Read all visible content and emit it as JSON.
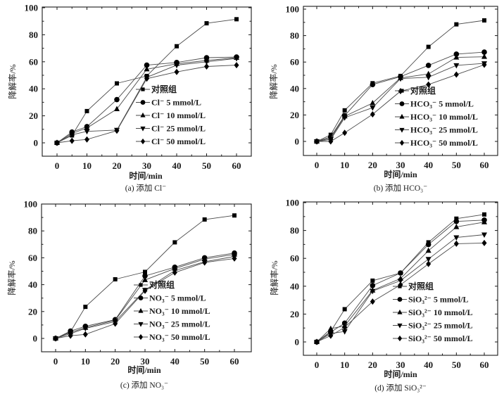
{
  "figure": {
    "shared": {
      "xlabel": "时间/min",
      "ylabel": "降解率/%",
      "x_ticks": [
        0,
        10,
        20,
        30,
        40,
        50,
        60
      ],
      "y_ticks": [
        0,
        20,
        40,
        60,
        80,
        100
      ],
      "x_range": [
        -5,
        65
      ],
      "y_range": [
        -10,
        100
      ],
      "markers": [
        "square",
        "circle",
        "triangle-up",
        "triangle-down",
        "diamond"
      ]
    }
  },
  "chart_data": [
    {
      "id": "a",
      "type": "line",
      "title": "",
      "caption": "(a) 添加 Cl⁻",
      "xlabel": "时间/min",
      "ylabel": "降解率/%",
      "xlim": [
        -5,
        65
      ],
      "ylim": [
        -10,
        100
      ],
      "x": [
        0,
        5,
        10,
        20,
        30,
        40,
        50,
        60
      ],
      "legend_position": "lower-right",
      "series": [
        {
          "name": "对照组",
          "marker": "square",
          "values": [
            0,
            5.5,
            23.5,
            44,
            49.5,
            71.5,
            88.5,
            91.5
          ]
        },
        {
          "name": "Cl⁻ 5 mmol/L",
          "marker": "circle",
          "values": [
            0,
            8,
            12,
            32,
            57.5,
            59.5,
            63,
            63.5
          ]
        },
        {
          "name": "Cl⁻ 10 mmol/L",
          "marker": "triangle-up",
          "values": [
            0,
            7,
            11,
            25,
            54.5,
            58.5,
            61,
            63
          ]
        },
        {
          "name": "Cl⁻ 25 mmol/L",
          "marker": "triangle-down",
          "values": [
            0,
            6,
            8.5,
            9.5,
            48.5,
            57.5,
            60,
            62.5
          ]
        },
        {
          "name": "Cl⁻ 50 mmol/L",
          "marker": "diamond",
          "values": [
            0,
            1.5,
            2.5,
            9,
            47.5,
            52.5,
            56.5,
            57.5
          ]
        }
      ]
    },
    {
      "id": "b",
      "type": "line",
      "title": "",
      "caption": "(b) 添加 HCO₃⁻",
      "xlabel": "时间/min",
      "ylabel": "降解率/%",
      "xlim": [
        -5,
        65
      ],
      "ylim": [
        -10,
        100
      ],
      "x": [
        0,
        5,
        10,
        20,
        30,
        40,
        50,
        60
      ],
      "legend_position": "lower-right",
      "series": [
        {
          "name": "对照组",
          "marker": "square",
          "values": [
            0,
            5,
            23.5,
            44,
            49.5,
            71.5,
            88.5,
            91.5
          ]
        },
        {
          "name": "HCO₃⁻ 5 mmol/L",
          "marker": "circle",
          "values": [
            0,
            3.5,
            19.5,
            43,
            49,
            57.5,
            66,
            67.5
          ]
        },
        {
          "name": "HCO₃⁻ 10 mmol/L",
          "marker": "triangle-up",
          "values": [
            0,
            2.5,
            19,
            29,
            48,
            51,
            63.5,
            64
          ]
        },
        {
          "name": "HCO₃⁻ 25 mmol/L",
          "marker": "triangle-down",
          "values": [
            0,
            1.5,
            18,
            25.5,
            47.5,
            48.5,
            57.5,
            59
          ]
        },
        {
          "name": "HCO₃⁻ 50 mmol/L",
          "marker": "diamond",
          "values": [
            0,
            0,
            6.5,
            20.5,
            38,
            43,
            50.5,
            58
          ]
        }
      ]
    },
    {
      "id": "c",
      "type": "line",
      "title": "",
      "caption": "(c) 添加 NO₃⁻",
      "xlabel": "时间/min",
      "ylabel": "降解率/%",
      "xlim": [
        -5,
        65
      ],
      "ylim": [
        -10,
        100
      ],
      "x": [
        0,
        5,
        10,
        20,
        30,
        40,
        50,
        60
      ],
      "legend_position": "lower-right",
      "series": [
        {
          "name": "对照组",
          "marker": "square",
          "values": [
            0,
            5,
            23.5,
            44,
            49.5,
            71.5,
            88.5,
            91.5
          ]
        },
        {
          "name": "NO₃⁻ 5 mmol/L",
          "marker": "circle",
          "values": [
            0,
            5.5,
            9,
            14,
            46.5,
            53,
            60,
            63.5
          ]
        },
        {
          "name": "NO₃⁻ 10 mmol/L",
          "marker": "triangle-up",
          "values": [
            0,
            4.5,
            8,
            13.5,
            43.5,
            52,
            59,
            62.5
          ]
        },
        {
          "name": "NO₃⁻ 25 mmol/L",
          "marker": "triangle-down",
          "values": [
            0,
            3.5,
            7.5,
            12.5,
            36,
            50.5,
            57,
            61
          ]
        },
        {
          "name": "NO₃⁻ 50 mmol/L",
          "marker": "diamond",
          "values": [
            0,
            2,
            3,
            11,
            35.5,
            49,
            56.5,
            59.5
          ]
        }
      ]
    },
    {
      "id": "d",
      "type": "line",
      "title": "",
      "caption": "(d) 添加 SiO₃²⁻",
      "xlabel": "时间/min",
      "ylabel": "降解率/%",
      "xlim": [
        -5,
        65
      ],
      "ylim": [
        -10,
        100
      ],
      "x": [
        0,
        5,
        10,
        20,
        30,
        40,
        50,
        60
      ],
      "legend_position": "lower-right",
      "series": [
        {
          "name": "对照组",
          "marker": "square",
          "values": [
            0,
            7.5,
            23.5,
            44,
            49.5,
            71.5,
            88.5,
            91.5
          ]
        },
        {
          "name": "SiO₃²⁻ 5 mmol/L",
          "marker": "circle",
          "values": [
            0,
            7,
            13.5,
            40.5,
            49.5,
            70,
            86.5,
            87.5
          ]
        },
        {
          "name": "SiO₃²⁻ 10 mmol/L",
          "marker": "triangle-up",
          "values": [
            0,
            9.5,
            11.5,
            37,
            45.5,
            65.5,
            82.5,
            86
          ]
        },
        {
          "name": "SiO₃²⁻ 25 mmol/L",
          "marker": "triangle-down",
          "values": [
            0,
            6,
            7.5,
            36.5,
            44,
            59.5,
            75,
            77
          ]
        },
        {
          "name": "SiO₃²⁻ 50 mmol/L",
          "marker": "diamond",
          "values": [
            0,
            4.5,
            10.5,
            29,
            41,
            56,
            70.5,
            71
          ]
        }
      ]
    }
  ]
}
